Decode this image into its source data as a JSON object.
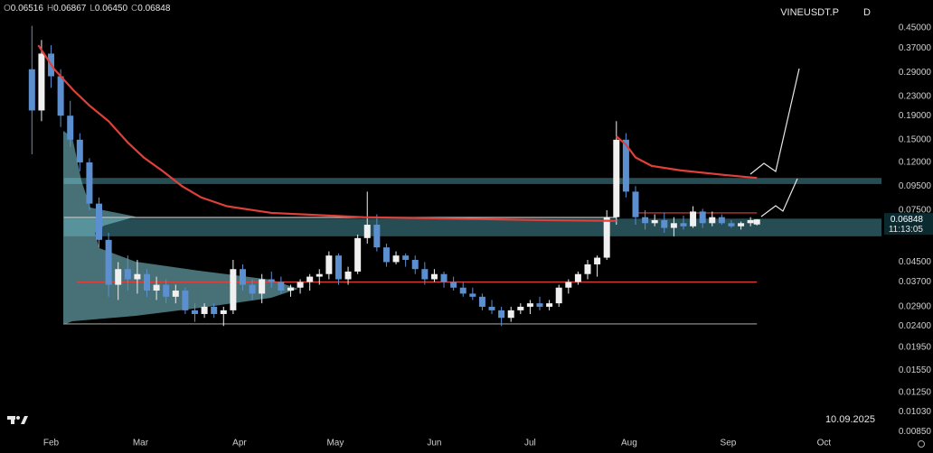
{
  "header": {
    "symbol": "VINEUSDT.P",
    "interval": "D",
    "ohlc": [
      {
        "key": "O",
        "text": "0.06516"
      },
      {
        "key": "H",
        "text": "0.06867"
      },
      {
        "key": "L",
        "text": "0.06450"
      },
      {
        "key": "C",
        "text": "0.06848"
      }
    ]
  },
  "chart_data": {
    "type": "candlestick",
    "x": [
      -6,
      -3,
      0,
      3,
      6,
      9,
      12,
      15,
      18,
      21,
      24,
      27,
      30,
      33,
      36,
      39,
      42,
      45,
      48,
      51,
      54,
      57,
      60,
      63,
      66,
      69,
      72,
      75,
      78,
      81,
      84,
      87,
      90,
      93,
      96,
      99,
      102,
      105,
      108,
      111,
      114,
      117,
      120,
      123,
      126,
      129,
      132,
      135,
      138,
      141,
      144,
      147,
      150,
      153,
      156,
      159,
      162,
      165,
      168,
      171,
      174,
      177,
      180,
      183,
      186,
      189,
      192,
      195,
      198,
      201,
      204,
      207,
      210,
      213,
      216,
      219,
      221
    ],
    "open": [
      0.3,
      0.2,
      0.35,
      0.28,
      0.19,
      0.15,
      0.12,
      0.08,
      0.056,
      0.036,
      0.042,
      0.038,
      0.04,
      0.034,
      0.036,
      0.032,
      0.034,
      0.028,
      0.027,
      0.029,
      0.027,
      0.028,
      0.042,
      0.036,
      0.033,
      0.038,
      0.037,
      0.034,
      0.035,
      0.037,
      0.039,
      0.04,
      0.048,
      0.038,
      0.041,
      0.057,
      0.065,
      0.052,
      0.045,
      0.048,
      0.046,
      0.042,
      0.038,
      0.04,
      0.037,
      0.035,
      0.033,
      0.032,
      0.029,
      0.028,
      0.026,
      0.028,
      0.029,
      0.03,
      0.029,
      0.03,
      0.035,
      0.037,
      0.04,
      0.044,
      0.047,
      0.07,
      0.15,
      0.09,
      0.07,
      0.066,
      0.068,
      0.063,
      0.066,
      0.064,
      0.074,
      0.066,
      0.07,
      0.066,
      0.064,
      0.066,
      0.06516
    ],
    "high": [
      0.46,
      0.4,
      0.38,
      0.3,
      0.22,
      0.16,
      0.125,
      0.085,
      0.06,
      0.045,
      0.048,
      0.046,
      0.042,
      0.039,
      0.038,
      0.036,
      0.035,
      0.03,
      0.03,
      0.03,
      0.029,
      0.046,
      0.044,
      0.038,
      0.04,
      0.041,
      0.039,
      0.036,
      0.038,
      0.04,
      0.042,
      0.05,
      0.049,
      0.043,
      0.059,
      0.09,
      0.072,
      0.054,
      0.05,
      0.049,
      0.048,
      0.045,
      0.042,
      0.041,
      0.039,
      0.037,
      0.035,
      0.033,
      0.031,
      0.029,
      0.029,
      0.03,
      0.031,
      0.032,
      0.031,
      0.036,
      0.038,
      0.041,
      0.046,
      0.048,
      0.075,
      0.18,
      0.16,
      0.095,
      0.075,
      0.072,
      0.073,
      0.07,
      0.071,
      0.078,
      0.076,
      0.074,
      0.072,
      0.068,
      0.067,
      0.07,
      0.06867
    ],
    "low": [
      0.13,
      0.18,
      0.25,
      0.17,
      0.14,
      0.11,
      0.075,
      0.052,
      0.032,
      0.031,
      0.034,
      0.033,
      0.032,
      0.031,
      0.03,
      0.03,
      0.027,
      0.025,
      0.026,
      0.026,
      0.024,
      0.027,
      0.034,
      0.031,
      0.03,
      0.035,
      0.033,
      0.032,
      0.033,
      0.034,
      0.036,
      0.038,
      0.036,
      0.036,
      0.04,
      0.054,
      0.05,
      0.043,
      0.044,
      0.043,
      0.04,
      0.036,
      0.037,
      0.035,
      0.034,
      0.032,
      0.031,
      0.028,
      0.027,
      0.024,
      0.025,
      0.027,
      0.027,
      0.028,
      0.028,
      0.029,
      0.033,
      0.036,
      0.038,
      0.039,
      0.046,
      0.065,
      0.085,
      0.065,
      0.062,
      0.064,
      0.06,
      0.058,
      0.062,
      0.063,
      0.063,
      0.064,
      0.065,
      0.063,
      0.062,
      0.064,
      0.0645
    ],
    "close": [
      0.2,
      0.35,
      0.28,
      0.19,
      0.15,
      0.12,
      0.08,
      0.056,
      0.036,
      0.042,
      0.038,
      0.04,
      0.034,
      0.036,
      0.032,
      0.034,
      0.028,
      0.027,
      0.029,
      0.027,
      0.028,
      0.042,
      0.036,
      0.033,
      0.038,
      0.037,
      0.034,
      0.035,
      0.037,
      0.039,
      0.04,
      0.048,
      0.038,
      0.041,
      0.057,
      0.065,
      0.052,
      0.045,
      0.048,
      0.046,
      0.042,
      0.038,
      0.04,
      0.037,
      0.035,
      0.033,
      0.032,
      0.029,
      0.028,
      0.026,
      0.028,
      0.029,
      0.03,
      0.029,
      0.03,
      0.035,
      0.037,
      0.04,
      0.044,
      0.047,
      0.07,
      0.15,
      0.09,
      0.07,
      0.066,
      0.068,
      0.063,
      0.066,
      0.064,
      0.074,
      0.066,
      0.07,
      0.066,
      0.064,
      0.066,
      0.068,
      0.06848
    ],
    "up_color": "#f0f0f0",
    "down_color": "#5b8fd0",
    "log_scale": true,
    "ylim": [
      0.008,
      0.593
    ],
    "yticks": [
      {
        "value": 0.45,
        "label": "0.45000"
      },
      {
        "value": 0.37,
        "label": "0.37000"
      },
      {
        "value": 0.29,
        "label": "0.29000"
      },
      {
        "value": 0.23,
        "label": "0.23000"
      },
      {
        "value": 0.19,
        "label": "0.19000"
      },
      {
        "value": 0.15,
        "label": "0.15000"
      },
      {
        "value": 0.12,
        "label": "0.12000"
      },
      {
        "value": 0.095,
        "label": "0.09500"
      },
      {
        "value": 0.075,
        "label": "0.07500"
      },
      {
        "value": 0.045,
        "label": "0.04500"
      },
      {
        "value": 0.037,
        "label": "0.03700"
      },
      {
        "value": 0.029,
        "label": "0.02900"
      },
      {
        "value": 0.024,
        "label": "0.02400"
      },
      {
        "value": 0.0195,
        "label": "0.01950"
      },
      {
        "value": 0.0155,
        "label": "0.01550"
      },
      {
        "value": 0.0125,
        "label": "0.01250"
      },
      {
        "value": 0.0103,
        "label": "0.01030"
      },
      {
        "value": 0.0085,
        "label": "0.00850"
      }
    ],
    "xlim": [
      -16,
      260
    ],
    "xticks": [
      {
        "value": 0,
        "label": "Feb"
      },
      {
        "value": 28,
        "label": "Mar"
      },
      {
        "value": 59,
        "label": "Apr"
      },
      {
        "value": 89,
        "label": "May"
      },
      {
        "value": 120,
        "label": "Jun"
      },
      {
        "value": 150,
        "label": "Jul"
      },
      {
        "value": 181,
        "label": "Aug"
      },
      {
        "value": 212,
        "label": "Sep"
      },
      {
        "value": 242,
        "label": "Oct"
      }
    ],
    "last_price": 0.06848,
    "countdown": "11:13:05",
    "date": "10.09.2025",
    "overlays": [
      {
        "color": "#e0403a",
        "x": [
          -4,
          1,
          7,
          12,
          18,
          24,
          29,
          35,
          41,
          47,
          55,
          69,
          98,
          126,
          154,
          177
        ],
        "values": [
          0.38,
          0.3,
          0.244,
          0.21,
          0.18,
          0.146,
          0.126,
          0.11,
          0.095,
          0.085,
          0.078,
          0.073,
          0.07,
          0.069,
          0.068,
          0.0675
        ]
      },
      {
        "color": "#e0403a",
        "x": [
          177,
          180,
          183,
          188,
          197,
          211,
          221
        ],
        "values": [
          0.155,
          0.143,
          0.126,
          0.116,
          0.111,
          0.106,
          0.103
        ]
      }
    ],
    "levels": [
      {
        "value": 0.073,
        "color": "#e0403a",
        "x": [
          184,
          221
        ]
      },
      {
        "value": 0.037,
        "color": "#e0403a",
        "x": [
          8,
          221
        ]
      },
      {
        "value": 0.0245,
        "color": "#9a9a9a",
        "x": [
          4,
          221
        ]
      },
      {
        "value": 0.0698,
        "color": "#c8c8c8",
        "x": [
          4,
          177
        ]
      }
    ],
    "zones": [
      {
        "low": 0.097,
        "high": 0.103,
        "color": "#2e5a63",
        "x": [
          4,
          260
        ]
      },
      {
        "low": 0.058,
        "high": 0.069,
        "color": "#2e5a63",
        "x": [
          4,
          260
        ]
      }
    ]
  }
}
